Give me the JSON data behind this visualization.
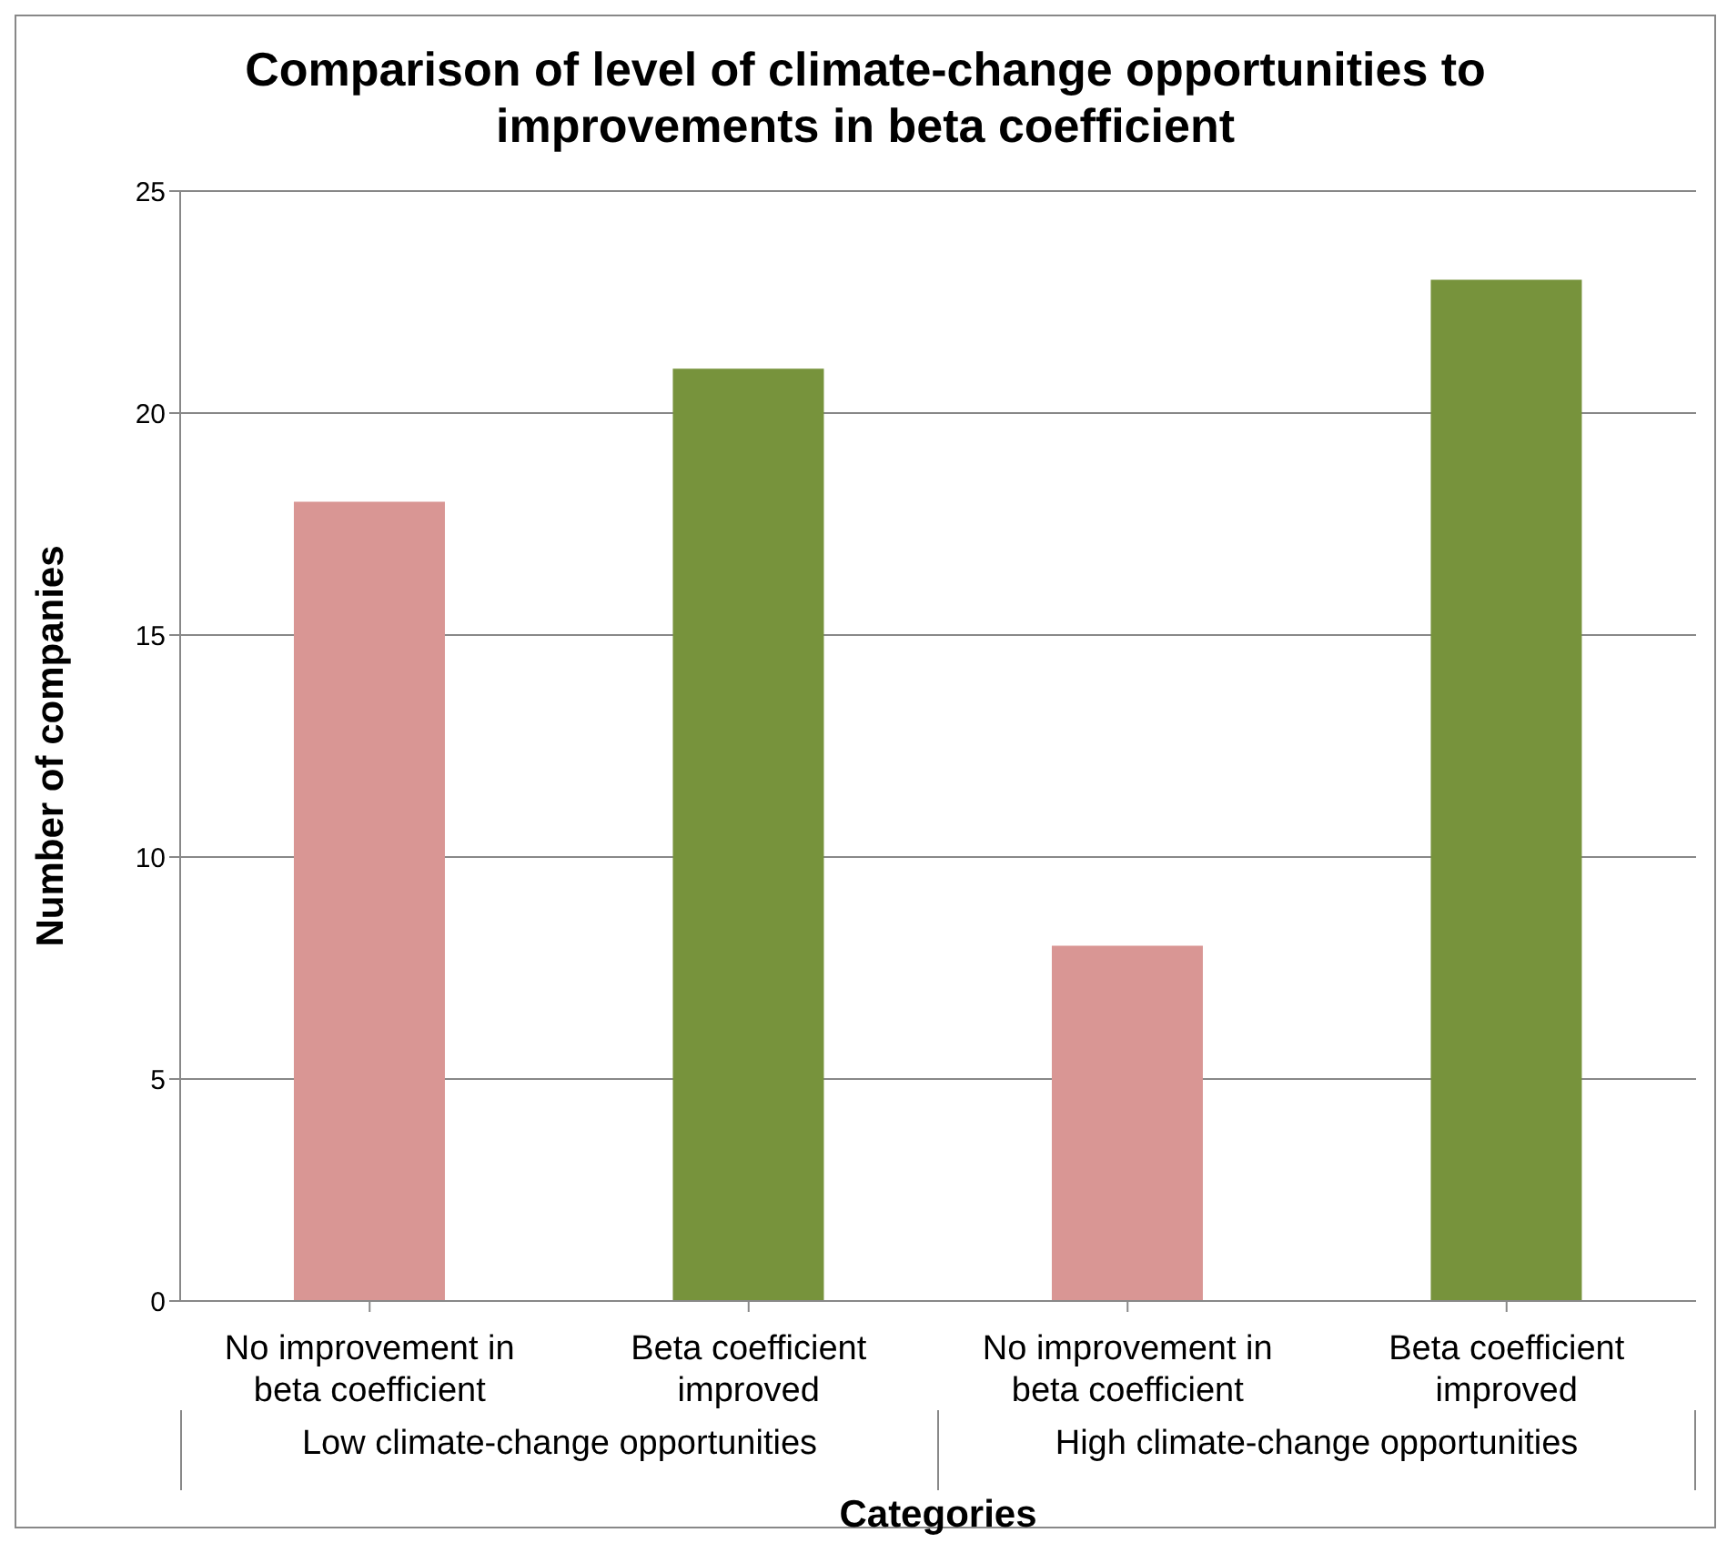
{
  "chart_data": {
    "type": "bar",
    "title": "Comparison of level of climate-change opportunities to improvements in beta coefficient",
    "xlabel": "Categories",
    "ylabel": "Number of companies",
    "categories": [
      "No improvement in beta coefficient",
      "Beta coefficient improved",
      "No improvement in beta coefficient",
      "Beta coefficient improved"
    ],
    "values": [
      18,
      21,
      8,
      23
    ],
    "colors": [
      "#d99694",
      "#77933c",
      "#d99694",
      "#77933c"
    ],
    "annotations": [
      "Low climate-change opportunities",
      "High climate-change opportunities"
    ],
    "ylim": [
      0,
      25
    ],
    "yticks": [
      0,
      5,
      10,
      15,
      20,
      25
    ],
    "grid": "y",
    "legend": false
  }
}
